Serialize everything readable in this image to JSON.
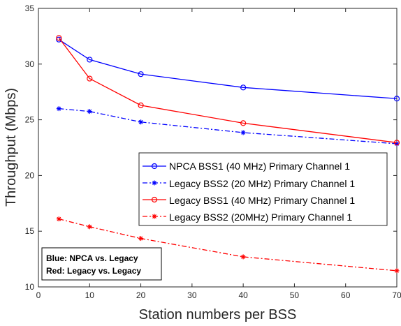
{
  "chart_data": {
    "type": "line",
    "xlabel": "Station numbers per BSS",
    "ylabel": "Throughput (Mbps)",
    "xlim": [
      0,
      70
    ],
    "ylim": [
      10,
      35
    ],
    "xticks": [
      0,
      10,
      20,
      30,
      40,
      50,
      60,
      70
    ],
    "yticks": [
      10,
      15,
      20,
      25,
      30,
      35
    ],
    "grid": false,
    "legend_position": "center-right",
    "x": [
      4,
      10,
      20,
      40,
      70
    ],
    "series": [
      {
        "name": "NPCA BSS1 (40 MHz) Primary Channel 1",
        "values": [
          32.2,
          30.4,
          29.1,
          27.9,
          26.9
        ],
        "color": "#0000ff",
        "line": "solid",
        "marker": "circle"
      },
      {
        "name": "Legacy BSS2 (20 MHz) Primary Channel 1",
        "values": [
          26.0,
          25.75,
          24.8,
          23.85,
          22.85
        ],
        "color": "#0000ff",
        "line": "dashdot",
        "marker": "star"
      },
      {
        "name": "Legacy BSS1 (40 MHz) Primary Channel 1",
        "values": [
          32.35,
          28.7,
          26.3,
          24.7,
          22.95
        ],
        "color": "#ff0000",
        "line": "solid",
        "marker": "circle"
      },
      {
        "name": "Legacy BSS2 (20MHz) Primary Channel 1",
        "values": [
          16.1,
          15.4,
          14.35,
          12.7,
          11.45
        ],
        "color": "#ff0000",
        "line": "dashdot",
        "marker": "star"
      }
    ],
    "annotations": [
      "Blue: NPCA vs. Legacy",
      "Red: Legacy vs. Legacy"
    ]
  }
}
